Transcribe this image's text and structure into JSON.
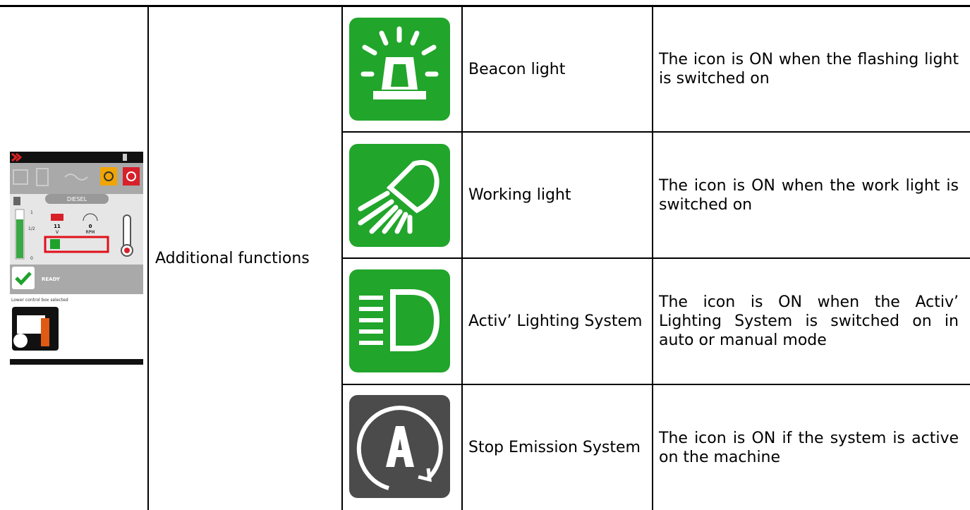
{
  "screen": {
    "fuel_type": "DIESEL",
    "voltage": "11",
    "voltage_unit": "V",
    "rpm": "0",
    "rpm_unit": "RPM",
    "fuel_levels": [
      "1",
      "1/2",
      "0"
    ],
    "status": "READY",
    "control_box": "Lower control box selected"
  },
  "table": {
    "function": "Additional functions",
    "rows": [
      {
        "name": "Beacon light",
        "description": "The icon is ON when the flashing light is switched on"
      },
      {
        "name": "Working light",
        "description": "The icon is ON when the work light is switched on"
      },
      {
        "name": "Activ’ Lighting System",
        "description": "The icon is ON when the Activ’ Lighting System is switched on in auto or manual mode"
      },
      {
        "name": "Stop Emission System",
        "description": "The icon is ON if the system is active on the machine"
      }
    ]
  }
}
